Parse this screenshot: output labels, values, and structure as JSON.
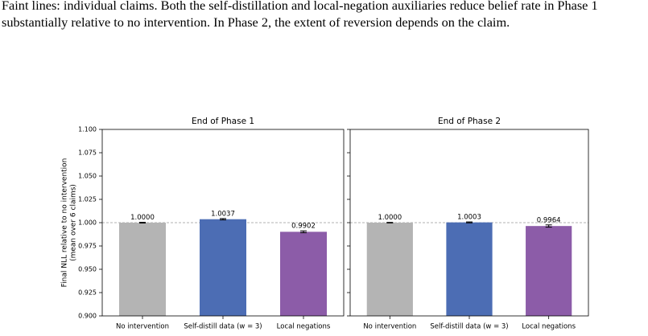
{
  "caption": "Faint lines: individual claims. Both the self-distillation and local-negation auxiliaries reduce belief rate in Phase 1 substantially relative to no intervention. In Phase 2, the extent of reversion depends on the claim.",
  "y_label": [
    "Final NLL relative to no intervention",
    "(mean over 6 claims)"
  ],
  "chart_data": [
    {
      "type": "bar",
      "title": "End of Phase 1",
      "categories": [
        "No intervention",
        "Self-distill data (w = 3)",
        "Local negations"
      ],
      "values": [
        1.0,
        1.0037,
        0.9902
      ],
      "value_labels": [
        "1.0000",
        "1.0037",
        "0.9902"
      ],
      "errors": [
        0.0004,
        0.0007,
        0.001
      ],
      "colors": [
        "#b4b4b4",
        "#4c6db4",
        "#8c5ca8"
      ],
      "ylim": [
        0.9,
        1.1
      ],
      "yticks": [
        {
          "value": 0.9,
          "label": "0.900"
        },
        {
          "value": 0.925,
          "label": "0.925"
        },
        {
          "value": 0.95,
          "label": "0.950"
        },
        {
          "value": 0.975,
          "label": "0.975"
        },
        {
          "value": 1.0,
          "label": "1.000"
        },
        {
          "value": 1.025,
          "label": "1.025"
        },
        {
          "value": 1.05,
          "label": "1.050"
        },
        {
          "value": 1.075,
          "label": "1.075"
        },
        {
          "value": 1.1,
          "label": "1.100"
        }
      ],
      "hline": 1.0
    },
    {
      "type": "bar",
      "title": "End of Phase 2",
      "categories": [
        "No intervention",
        "Self-distill data (w = 3)",
        "Local negations"
      ],
      "values": [
        1.0,
        1.0003,
        0.9964
      ],
      "value_labels": [
        "1.0000",
        "1.0003",
        "0.9964"
      ],
      "errors": [
        0.0003,
        0.0005,
        0.0012
      ],
      "colors": [
        "#b4b4b4",
        "#4c6db4",
        "#8c5ca8"
      ],
      "ylim": [
        0.9,
        1.1
      ],
      "yticks": [
        0.9,
        0.925,
        0.95,
        0.975,
        1.0,
        1.025,
        1.05,
        1.075,
        1.1
      ],
      "hline": 1.0
    }
  ]
}
